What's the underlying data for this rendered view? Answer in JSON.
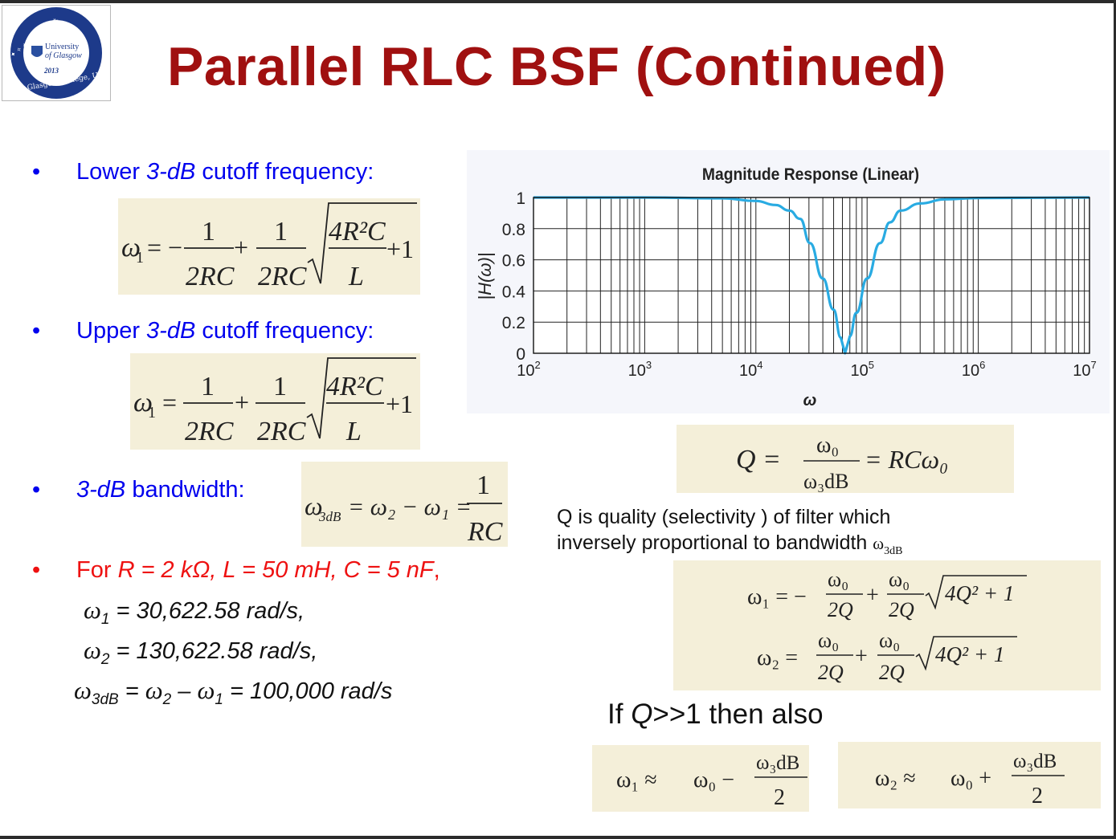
{
  "slide": {
    "title": "Parallel RLC BSF (Continued)",
    "logo": {
      "university_line1": "University",
      "university_line2": "of Glasgow",
      "year": "2013",
      "ring_text": "Glasgow College, UESTC",
      "colors": {
        "ring": "#1d3a8a",
        "shield": "#2a4fa0"
      }
    }
  },
  "bullets": {
    "lower": {
      "prefix": "Lower ",
      "italic": "3-dB",
      "suffix": " cutoff frequency:"
    },
    "upper": {
      "prefix": "Upper ",
      "italic": "3-dB",
      "suffix": " cutoff frequency:"
    },
    "bandwidth": {
      "italic": "3-dB",
      "suffix": " bandwidth:"
    },
    "example": {
      "lead": "For ",
      "params": "R = 2 kΩ, L = 50 mH, C = 5 nF",
      "tail": ","
    }
  },
  "formulas": {
    "omega1": {
      "lhs": "ω",
      "sub": "1",
      "eq": "= −",
      "one": "1",
      "den": "2RC",
      "plus": "+",
      "rad_num": "4R²C",
      "rad_den": "L",
      "plus_one": "+1"
    },
    "omega2_as_printed": {
      "lhs": "ω",
      "sub": "1",
      "eq": "=",
      "one": "1",
      "den": "2RC",
      "plus": "+",
      "rad_num": "4R²C",
      "rad_den": "L",
      "plus_one": "+1"
    },
    "bandwidth": {
      "lhs": "ω",
      "lhs_sub": "3dB",
      "rhs": "= ω₂ − ω₁ =",
      "num": "1",
      "den": "RC"
    },
    "Q": {
      "lhs": "Q =",
      "num": "ω₀",
      "den": "ω₃dB",
      "rhs": "= RCω₀"
    },
    "q_omega1": {
      "lhs": "ω₁ = −",
      "num": "ω₀",
      "den": "2Q",
      "plus": "+",
      "num2": "ω₀",
      "den2": "2Q",
      "rad": "4Q² + 1"
    },
    "q_omega2": {
      "lhs": "ω₂ =",
      "num": "ω₀",
      "den": "2Q",
      "plus": "+",
      "num2": "ω₀",
      "den2": "2Q",
      "rad": "4Q² + 1"
    },
    "approx1": {
      "lhs": "ω₁ ≈",
      "mid": "ω₀ −",
      "num": "ω₃dB",
      "den": "2"
    },
    "approx2": {
      "lhs": "ω₂ ≈",
      "mid": "ω₀ +",
      "num": "ω₃dB",
      "den": "2"
    }
  },
  "values": {
    "w1": {
      "sym": "ω",
      "sub": "1",
      "text": " = 30,622.58 rad/s,"
    },
    "w2": {
      "sym": "ω",
      "sub": "2",
      "text": " = 130,622.58 rad/s,"
    },
    "w3": {
      "sym": "ω",
      "sub": "3dB",
      "eq": " = ",
      "sym2": "ω",
      "sub2": "2",
      "minus": " – ",
      "sym3": "ω",
      "sub3": "1",
      "text": " = 100,000 rad/s"
    }
  },
  "q_description": {
    "line1": "Q is quality (selectivity ) of filter which",
    "line2": "inversely proportional to bandwidth ",
    "sym": "ω",
    "sub": "3dB"
  },
  "if_q": {
    "prefix": "If ",
    "q": "Q",
    "suffix": ">>1 then also"
  },
  "chart_data": {
    "type": "line",
    "title": "Magnitude Response (Linear)",
    "xlabel": "ω",
    "ylabel": "|H(ω)|",
    "x_scale": "log",
    "xlim": [
      100,
      10000000
    ],
    "ylim": [
      0,
      1
    ],
    "x_ticks": [
      {
        "value": 100,
        "base": "10",
        "exp": "2"
      },
      {
        "value": 1000,
        "base": "10",
        "exp": "3"
      },
      {
        "value": 10000,
        "base": "10",
        "exp": "4"
      },
      {
        "value": 100000,
        "base": "10",
        "exp": "5"
      },
      {
        "value": 1000000,
        "base": "10",
        "exp": "6"
      },
      {
        "value": 10000000,
        "base": "10",
        "exp": "7"
      }
    ],
    "y_ticks": [
      "0",
      "0.2",
      "0.4",
      "0.6",
      "0.8",
      "1"
    ],
    "grid": true,
    "series": [
      {
        "color": "#29abe2",
        "x": [
          100,
          1000,
          5000,
          10000,
          15000,
          20000,
          25000,
          30622.58,
          40000,
          50000,
          58000,
          63245.55,
          70000,
          80000,
          100000,
          130622.58,
          160000,
          200000,
          300000,
          500000,
          1000000,
          10000000
        ],
        "y": [
          1.0,
          1.0,
          0.995,
          0.978,
          0.952,
          0.916,
          0.863,
          0.707,
          0.48,
          0.28,
          0.1,
          0.0,
          0.11,
          0.26,
          0.48,
          0.707,
          0.84,
          0.916,
          0.962,
          0.988,
          0.997,
          1.0
        ]
      }
    ]
  }
}
